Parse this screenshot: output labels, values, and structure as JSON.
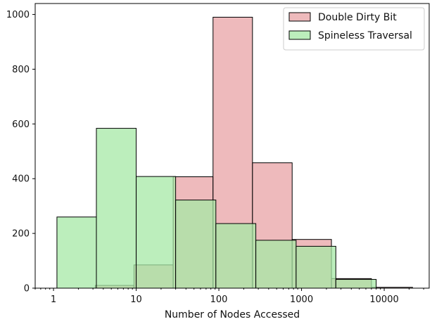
{
  "chart_data": {
    "type": "bar",
    "subtype": "histogram",
    "title": "",
    "xlabel": "Number of Nodes Accessed",
    "ylabel": "",
    "xscale": "log",
    "xlim": [
      0.6,
      35000
    ],
    "ylim": [
      0,
      1040
    ],
    "x_ticks": [
      1,
      10,
      100,
      1000,
      10000
    ],
    "x_tick_labels": [
      "1",
      "10",
      "100",
      "1000",
      "10000"
    ],
    "y_ticks": [
      0,
      200,
      400,
      600,
      800,
      1000
    ],
    "y_tick_labels": [
      "0",
      "200",
      "400",
      "600",
      "800",
      "1000"
    ],
    "grid": false,
    "legend": "top-right",
    "series": [
      {
        "name": "Double Dirty Bit",
        "color": "#e8a3a6",
        "bins": [
          {
            "x0": 3.2,
            "x1": 9.4,
            "value": 10
          },
          {
            "x0": 9.4,
            "x1": 28,
            "value": 85
          },
          {
            "x0": 28,
            "x1": 85,
            "value": 407
          },
          {
            "x0": 85,
            "x1": 255,
            "value": 990
          },
          {
            "x0": 255,
            "x1": 770,
            "value": 458
          },
          {
            "x0": 770,
            "x1": 2300,
            "value": 178
          },
          {
            "x0": 2300,
            "x1": 7000,
            "value": 35
          },
          {
            "x0": 7000,
            "x1": 22000,
            "value": 3
          }
        ]
      },
      {
        "name": "Spineless Traversal",
        "color": "#a6e8a6",
        "bins": [
          {
            "x0": 1.1,
            "x1": 3.3,
            "value": 260
          },
          {
            "x0": 3.3,
            "x1": 10,
            "value": 584
          },
          {
            "x0": 10,
            "x1": 30,
            "value": 408
          },
          {
            "x0": 30,
            "x1": 92,
            "value": 322
          },
          {
            "x0": 92,
            "x1": 280,
            "value": 236
          },
          {
            "x0": 280,
            "x1": 860,
            "value": 175
          },
          {
            "x0": 860,
            "x1": 2600,
            "value": 153
          },
          {
            "x0": 2600,
            "x1": 8000,
            "value": 32
          }
        ]
      }
    ]
  }
}
